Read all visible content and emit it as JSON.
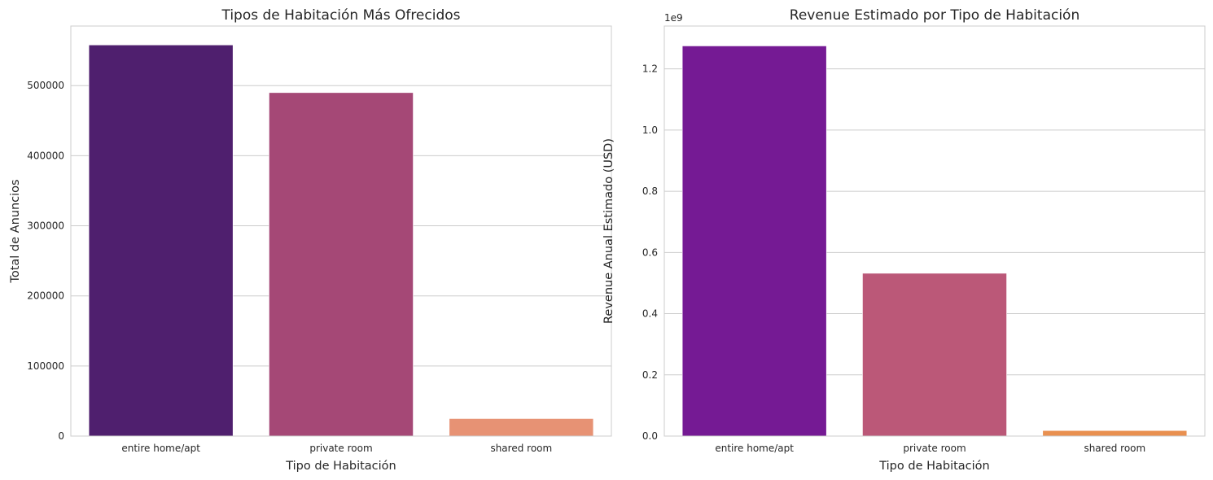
{
  "chart_data": [
    {
      "type": "bar",
      "title": "Tipos de Habitación Más Ofrecidos",
      "xlabel": "Tipo de Habitación",
      "ylabel": "Total de Anuncios",
      "categories": [
        "entire home/apt",
        "private room",
        "shared room"
      ],
      "values": [
        558000,
        490000,
        25000
      ],
      "colors": [
        "#4f1f6e",
        "#a54876",
        "#e79274"
      ],
      "ylim": [
        0,
        585000
      ],
      "yticks": [
        0,
        100000,
        200000,
        300000,
        400000,
        500000
      ],
      "ytick_labels": [
        "0",
        "100000",
        "200000",
        "300000",
        "400000",
        "500000"
      ],
      "offset_label": "",
      "grid": "y"
    },
    {
      "type": "bar",
      "title": "Revenue Estimado por Tipo de Habitación",
      "xlabel": "Tipo de Habitación",
      "ylabel": "Revenue Anual Estimado (USD)",
      "categories": [
        "entire home/apt",
        "private room",
        "shared room"
      ],
      "values": [
        1.275,
        0.532,
        0.018
      ],
      "colors": [
        "#751a94",
        "#bb5878",
        "#e99050"
      ],
      "ylim": [
        0,
        1.34
      ],
      "yticks": [
        0.0,
        0.2,
        0.4,
        0.6,
        0.8,
        1.0,
        1.2
      ],
      "ytick_labels": [
        "0.0",
        "0.2",
        "0.4",
        "0.6",
        "0.8",
        "1.0",
        "1.2"
      ],
      "offset_label": "1e9",
      "grid": "y"
    }
  ]
}
